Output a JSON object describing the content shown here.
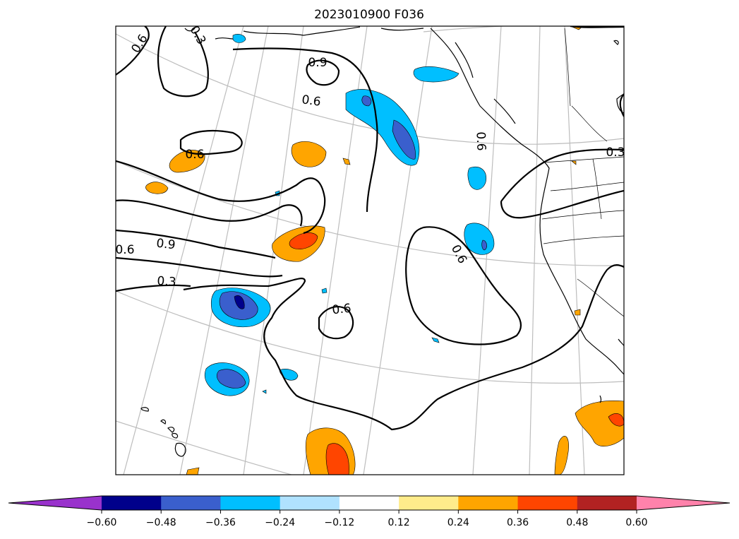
{
  "title": "2023010900 F036",
  "colorbar": {
    "extend": "both",
    "bins": [
      {
        "color": "#9932CC"
      },
      {
        "color": "#00008B"
      },
      {
        "color": "#3A5FCD"
      },
      {
        "color": "#00BFFF"
      },
      {
        "color": "#B0E2FF"
      },
      {
        "color": "#FFFFFF"
      },
      {
        "color": "#FFEC8B"
      },
      {
        "color": "#FFA500"
      },
      {
        "color": "#FF4500"
      },
      {
        "color": "#B22222"
      },
      {
        "color": "#FF82AB"
      }
    ],
    "ticks": [
      "−0.60",
      "−0.48",
      "−0.36",
      "−0.24",
      "−0.12",
      "0.12",
      "0.24",
      "0.36",
      "0.48",
      "0.60"
    ]
  },
  "contour_labels": [
    {
      "id": "c1",
      "text": "0.6"
    },
    {
      "id": "c2",
      "text": "0.3"
    },
    {
      "id": "c3",
      "text": "0.9"
    },
    {
      "id": "c4",
      "text": "0.6"
    },
    {
      "id": "c5",
      "text": "0.6"
    },
    {
      "id": "c6",
      "text": "0.6"
    },
    {
      "id": "c7",
      "text": "0.3"
    },
    {
      "id": "c8",
      "text": "0.9"
    },
    {
      "id": "c9",
      "text": "0.6"
    },
    {
      "id": "c10",
      "text": "0.3"
    },
    {
      "id": "c11",
      "text": "0.6"
    },
    {
      "id": "c12",
      "text": "0.6"
    }
  ]
}
